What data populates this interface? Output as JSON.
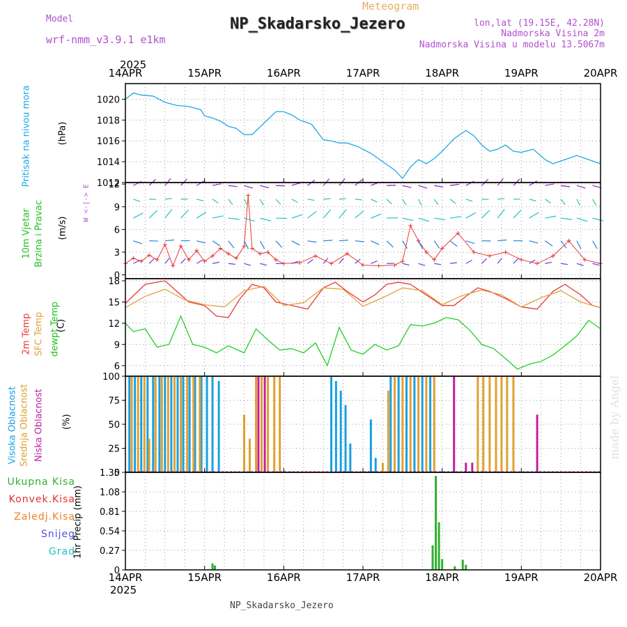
{
  "header": {
    "model_label": "Model",
    "model_name": "wrf-nmm_v3.9.1 e1km",
    "meteogram_label": "Meteogram",
    "station": "NP_Skadarsko_Jezero",
    "lonlat": "lon,lat (19.15E, 42.28N)",
    "elevation": "Nadmorska Visina 2m",
    "model_elevation": "Nadmorska Visina u modelu 13.5067m",
    "footer_station": "NP_Skadarsko_Jezero",
    "watermark": "made by Angel"
  },
  "time_axis": {
    "year": "2025",
    "labels": [
      "14APR",
      "15APR",
      "16APR",
      "17APR",
      "18APR",
      "19APR",
      "20APR"
    ]
  },
  "colors": {
    "pressure": "#1aa8e8",
    "temp2m": "#e83838",
    "sfc_temp": "#e0a040",
    "dewpt": "#20d020",
    "high_cloud": "#18a0e0",
    "mid_cloud": "#e0a030",
    "low_cloud": "#c020a0",
    "total_precip": "#30b030",
    "conv_precip": "#e03030",
    "frozen": "#f08020",
    "snow": "#5050e0",
    "hail": "#20c0c0",
    "purple": "#b050d0"
  },
  "chart_data": [
    {
      "type": "line",
      "panel": "pressure",
      "ylabel_name": "Pritisak na nivou mora",
      "ylabel_unit": "(hPa)",
      "ylim": [
        1012,
        1021.5
      ],
      "yticks": [
        "1012",
        "1014",
        "1016",
        "1018",
        "1020"
      ],
      "series": [
        {
          "x": [
            0,
            0.1,
            0.2,
            0.35,
            0.5,
            0.65,
            0.8,
            0.95,
            1.0,
            1.1,
            1.2,
            1.3,
            1.4,
            1.5,
            1.6,
            1.75,
            1.9,
            2.0,
            2.1,
            2.2,
            2.35,
            2.5,
            2.6,
            2.7,
            2.8,
            2.95,
            3.1,
            3.25,
            3.4,
            3.5,
            3.6,
            3.7,
            3.8,
            3.9,
            4.0,
            4.15,
            4.3,
            4.4,
            4.5,
            4.6,
            4.7,
            4.8,
            4.9,
            5.0,
            5.15,
            5.3,
            5.4,
            5.55,
            5.7,
            5.85,
            6.0
          ],
          "y": [
            1020.0,
            1020.6,
            1020.4,
            1020.3,
            1019.7,
            1019.4,
            1019.3,
            1019.0,
            1018.4,
            1018.2,
            1017.9,
            1017.4,
            1017.2,
            1016.6,
            1016.6,
            1017.7,
            1018.8,
            1018.8,
            1018.5,
            1018.0,
            1017.6,
            1016.1,
            1016.0,
            1015.8,
            1015.8,
            1015.4,
            1014.8,
            1014.0,
            1013.2,
            1012.4,
            1013.5,
            1014.2,
            1013.8,
            1014.3,
            1015.0,
            1016.2,
            1017.0,
            1016.5,
            1015.6,
            1015.0,
            1015.2,
            1015.6,
            1015.0,
            1014.9,
            1015.2,
            1014.2,
            1013.8,
            1014.2,
            1014.6,
            1014.2,
            1013.8
          ]
        }
      ]
    },
    {
      "type": "line",
      "panel": "wind",
      "ylabel_name": "10m Vjetar",
      "ylabel_name2": "Brzina i Pravac",
      "ylabel_unit": "(m/s)",
      "compass": "W <-|-> E",
      "ylim": [
        -0.5,
        12.2
      ],
      "yticks": [
        "0",
        "3",
        "6",
        "9",
        "12"
      ],
      "series": [
        {
          "name": "speed",
          "x": [
            0,
            0.1,
            0.2,
            0.3,
            0.4,
            0.5,
            0.6,
            0.7,
            0.8,
            0.9,
            1.0,
            1.1,
            1.2,
            1.3,
            1.4,
            1.5,
            1.55,
            1.6,
            1.7,
            1.8,
            1.9,
            2.0,
            2.2,
            2.4,
            2.6,
            2.8,
            3.0,
            3.2,
            3.4,
            3.5,
            3.6,
            3.7,
            3.8,
            3.9,
            4.0,
            4.2,
            4.4,
            4.6,
            4.8,
            5.0,
            5.2,
            5.4,
            5.6,
            5.8,
            6.0
          ],
          "y": [
            1.5,
            2.2,
            1.8,
            2.6,
            2.0,
            4.0,
            1.2,
            3.8,
            2.0,
            3.2,
            1.8,
            2.5,
            3.5,
            2.8,
            2.2,
            3.8,
            10.5,
            3.5,
            2.8,
            3.0,
            2.0,
            1.5,
            1.6,
            2.5,
            1.5,
            2.8,
            1.3,
            1.2,
            1.3,
            1.8,
            6.5,
            4.5,
            3.0,
            2.0,
            3.5,
            5.5,
            3.0,
            2.5,
            3.0,
            2.0,
            1.5,
            2.5,
            4.5,
            2.0,
            1.5
          ]
        }
      ]
    },
    {
      "type": "line",
      "panel": "temperature",
      "ylabel_names": [
        "2m Temp",
        "SFC Temp",
        "dewpt Temp"
      ],
      "ylabel_unit": "(C)",
      "ylim": [
        4.5,
        18.3
      ],
      "yticks": [
        "6",
        "9",
        "12",
        "15",
        "18"
      ],
      "series": [
        {
          "name": "2m Temp",
          "x": [
            0,
            0.25,
            0.5,
            0.65,
            0.8,
            1.0,
            1.15,
            1.3,
            1.45,
            1.6,
            1.75,
            1.9,
            2.1,
            2.3,
            2.5,
            2.65,
            2.8,
            3.0,
            3.15,
            3.3,
            3.45,
            3.6,
            3.8,
            4.0,
            4.15,
            4.3,
            4.45,
            4.6,
            4.8,
            5.0,
            5.2,
            5.4,
            5.55,
            5.75,
            5.9,
            6.0
          ],
          "y": [
            14.8,
            17.5,
            18.0,
            16.5,
            15.0,
            14.5,
            13.0,
            12.8,
            15.5,
            17.5,
            17.0,
            15.0,
            14.5,
            14.0,
            17.0,
            17.8,
            16.5,
            15.0,
            16.0,
            17.5,
            17.8,
            17.5,
            16.0,
            14.5,
            14.5,
            15.8,
            17.0,
            16.5,
            15.5,
            14.3,
            14.0,
            16.5,
            17.5,
            16.0,
            14.5,
            14.2
          ]
        },
        {
          "name": "SFC Temp",
          "x": [
            0,
            0.25,
            0.5,
            0.75,
            1.0,
            1.25,
            1.5,
            1.75,
            2.0,
            2.25,
            2.5,
            2.75,
            3.0,
            3.25,
            3.5,
            3.75,
            4.0,
            4.25,
            4.5,
            4.75,
            5.0,
            5.25,
            5.5,
            5.75,
            6.0
          ],
          "y": [
            14.2,
            15.8,
            16.8,
            15.3,
            14.6,
            14.3,
            16.6,
            17.2,
            14.5,
            14.9,
            17.0,
            16.8,
            14.4,
            15.6,
            17.0,
            16.6,
            14.6,
            15.9,
            16.7,
            16.0,
            14.3,
            15.6,
            16.6,
            15.0,
            14.2
          ]
        },
        {
          "name": "dewpt Temp",
          "x": [
            0,
            0.1,
            0.25,
            0.4,
            0.55,
            0.7,
            0.85,
            1.0,
            1.15,
            1.3,
            1.5,
            1.65,
            1.8,
            1.95,
            2.1,
            2.25,
            2.4,
            2.55,
            2.7,
            2.85,
            3.0,
            3.15,
            3.3,
            3.45,
            3.6,
            3.75,
            3.9,
            4.05,
            4.2,
            4.35,
            4.5,
            4.65,
            4.8,
            4.95,
            5.1,
            5.25,
            5.4,
            5.55,
            5.7,
            5.85,
            6.0
          ],
          "y": [
            12.0,
            10.8,
            11.2,
            8.6,
            9.0,
            13.0,
            9.0,
            8.6,
            7.8,
            8.8,
            7.8,
            11.2,
            9.6,
            8.2,
            8.4,
            7.8,
            9.2,
            6.0,
            11.4,
            8.2,
            7.6,
            9.0,
            8.2,
            8.8,
            11.8,
            11.6,
            12.0,
            12.8,
            12.5,
            11.0,
            9.0,
            8.4,
            7.0,
            5.5,
            6.2,
            6.6,
            7.5,
            8.8,
            10.2,
            12.4,
            11.2
          ]
        }
      ]
    },
    {
      "type": "bar",
      "panel": "clouds",
      "ylabel_names": [
        "Visoka Oblacnost",
        "Srednja Oblacnost",
        "Niska Oblacnost"
      ],
      "ylabel_unit": "(%)",
      "ylim": [
        0,
        100
      ],
      "yticks": [
        "0",
        "25",
        "50",
        "75",
        "100"
      ],
      "series": [
        {
          "name": "Visoka Oblacnost",
          "x": [
            0.05,
            0.12,
            0.2,
            0.28,
            0.35,
            0.43,
            0.5,
            0.58,
            0.66,
            0.73,
            0.81,
            0.88,
            0.96,
            1.03,
            1.1,
            1.18,
            2.6,
            2.66,
            2.72,
            2.78,
            2.84,
            3.1,
            3.16,
            3.35,
            3.45,
            3.55,
            3.65,
            3.75,
            3.85
          ],
          "y": [
            100,
            100,
            100,
            100,
            100,
            100,
            100,
            100,
            100,
            100,
            100,
            100,
            100,
            100,
            100,
            95,
            100,
            95,
            85,
            70,
            30,
            55,
            15,
            100,
            100,
            100,
            100,
            100,
            100
          ]
        },
        {
          "name": "Srednja Oblacnost",
          "x": [
            0.08,
            0.16,
            0.24,
            0.3,
            0.38,
            0.46,
            0.54,
            0.62,
            0.7,
            0.78,
            0.86,
            0.94,
            1.5,
            1.57,
            1.65,
            1.72,
            1.8,
            1.88,
            1.95,
            3.25,
            3.32,
            3.4,
            3.5,
            3.6,
            3.7,
            3.8,
            3.9,
            4.45,
            4.52,
            4.6,
            4.68,
            4.75,
            4.82,
            4.9
          ],
          "y": [
            100,
            100,
            100,
            35,
            100,
            100,
            100,
            100,
            100,
            100,
            100,
            100,
            60,
            35,
            100,
            100,
            100,
            100,
            100,
            10,
            85,
            100,
            100,
            100,
            100,
            100,
            100,
            100,
            100,
            100,
            100,
            100,
            100,
            100
          ]
        },
        {
          "name": "Niska Oblacnost",
          "x": [
            1.68,
            1.76,
            4.15,
            4.3,
            4.38,
            5.2
          ],
          "y": [
            100,
            100,
            100,
            10,
            10,
            60
          ]
        }
      ]
    },
    {
      "type": "bar",
      "panel": "precip",
      "legend": [
        "Ukupna Kisa",
        "Konvek.Kisa",
        "Zaledj.Kisa",
        "Snijeg",
        "Grad"
      ],
      "ylabel_unit": "1hr Precip (mm)",
      "ylim": [
        0,
        1.35
      ],
      "yticks": [
        "0",
        "0.27",
        "0.54",
        "0.81",
        "1.08",
        "1.35"
      ],
      "series": [
        {
          "name": "Ukupna Kisa",
          "x": [
            1.1,
            1.13,
            3.88,
            3.92,
            3.96,
            4.0,
            4.16,
            4.26,
            4.3
          ],
          "y": [
            0.09,
            0.06,
            0.34,
            1.3,
            0.66,
            0.15,
            0.05,
            0.14,
            0.07
          ]
        }
      ]
    }
  ]
}
